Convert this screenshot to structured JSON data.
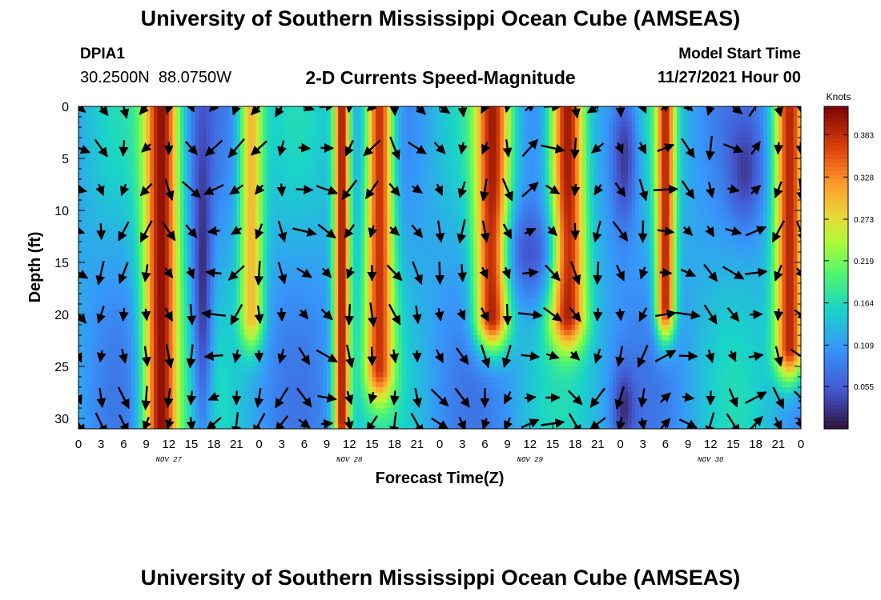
{
  "chart_data": {
    "type": "heatmap",
    "title": "University of Southern Mississippi Ocean Cube (AMSEAS)",
    "subtitle": "2-D Currents Speed-Magnitude",
    "station": {
      "id": "DPIA1",
      "coordinates": "30.2500N  88.0750W"
    },
    "model_start": {
      "label": "Model Start Time",
      "value": "11/27/2021 Hour 00"
    },
    "footer_title": "University of Southern Mississippi Ocean Cube (AMSEAS)",
    "xlabel": "Forecast Time(Z)",
    "ylabel": "Depth (ft)",
    "x_ticks": [
      "0",
      "3",
      "6",
      "9",
      "12",
      "15",
      "18",
      "21",
      "0",
      "3",
      "6",
      "9",
      "12",
      "15",
      "18",
      "21",
      "0",
      "3",
      "6",
      "9",
      "12",
      "15",
      "18",
      "21",
      "0",
      "3",
      "6",
      "9",
      "12",
      "15",
      "18",
      "21",
      "0"
    ],
    "date_labels": [
      {
        "text": "NOV 27",
        "hour": 12
      },
      {
        "text": "NOV 28",
        "hour": 36
      },
      {
        "text": "NOV 29",
        "hour": 60
      },
      {
        "text": "NOV 30",
        "hour": 84
      }
    ],
    "xlim": [
      0,
      96
    ],
    "ylim": [
      0,
      31
    ],
    "y_ticks": [
      "0",
      "5",
      "10",
      "15",
      "20",
      "25",
      "30"
    ],
    "colorbar": {
      "unit_label": "Knots",
      "ticks": [
        "0.383",
        "0.328",
        "0.273",
        "0.219",
        "0.164",
        "0.109",
        "0.055"
      ],
      "min": 0.0,
      "max": 0.42
    },
    "speed_bands": [
      {
        "center_hour": 11.0,
        "width_hours": 2.4,
        "peak": 0.41,
        "depth_range_ft": [
          0,
          31
        ]
      },
      {
        "center_hour": 23.0,
        "width_hours": 1.6,
        "peak": 0.3,
        "depth_range_ft": [
          0,
          20
        ]
      },
      {
        "center_hour": 35.0,
        "width_hours": 1.1,
        "peak": 0.4,
        "depth_range_ft": [
          0,
          30
        ]
      },
      {
        "center_hour": 40.0,
        "width_hours": 1.9,
        "peak": 0.38,
        "depth_range_ft": [
          0,
          25
        ]
      },
      {
        "center_hour": 55.0,
        "width_hours": 2.3,
        "peak": 0.4,
        "depth_range_ft": [
          0,
          20
        ]
      },
      {
        "center_hour": 65.0,
        "width_hours": 2.4,
        "peak": 0.4,
        "depth_range_ft": [
          0,
          20
        ]
      },
      {
        "center_hour": 78.0,
        "width_hours": 1.3,
        "peak": 0.39,
        "depth_range_ft": [
          0,
          19
        ]
      },
      {
        "center_hour": 94.5,
        "width_hours": 2.0,
        "peak": 0.39,
        "depth_range_ft": [
          0,
          23
        ]
      }
    ],
    "low_speed_zones": [
      {
        "center_hour": 16.5,
        "center_depth_ft": 15,
        "radius_hours": 1.3,
        "radius_ft": 18,
        "value": 0.02
      },
      {
        "center_hour": 72.5,
        "center_depth_ft": 5,
        "radius_hours": 2.0,
        "radius_ft": 8,
        "value": 0.03
      },
      {
        "center_hour": 72.5,
        "center_depth_ft": 29,
        "radius_hours": 1.5,
        "radius_ft": 4,
        "value": 0.02
      },
      {
        "center_hour": 88.5,
        "center_depth_ft": 6,
        "radius_hours": 2.2,
        "radius_ft": 5,
        "value": 0.03
      },
      {
        "center_hour": 60.0,
        "center_depth_ft": 14,
        "radius_hours": 3.0,
        "radius_ft": 5,
        "value": 0.05
      }
    ],
    "vector_grid": {
      "hour_step": 3,
      "depths_ft": [
        0,
        4,
        8,
        12,
        16,
        20,
        24,
        28,
        30.5
      ],
      "directions_by_hour_deg": [
        -40,
        -80,
        -90,
        -110,
        -80,
        -70,
        -160,
        -120,
        -110,
        -100,
        -30,
        -20,
        -100,
        -110,
        -70,
        -60,
        -60,
        -80,
        -90,
        -90,
        20,
        -20,
        -70,
        -120,
        -80,
        -90,
        20,
        -30,
        -80,
        -40,
        30,
        -90,
        -60
      ]
    }
  }
}
